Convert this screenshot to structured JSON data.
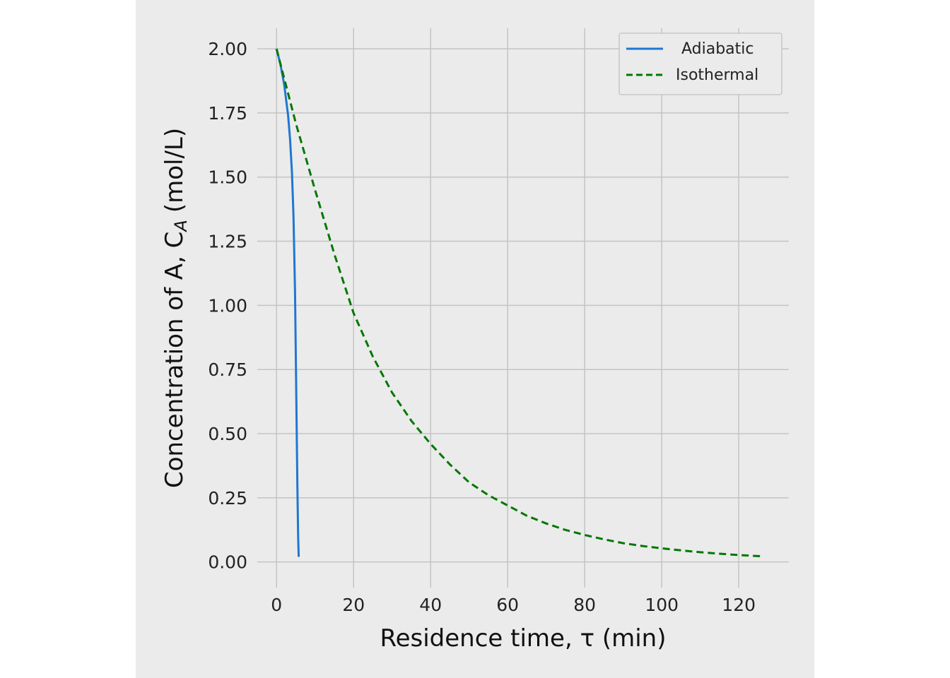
{
  "chart_data": {
    "type": "line",
    "xlabel": "Residence time, τ  (min)",
    "ylabel": "Concentration of A,  C",
    "ylabel_subscript": "A",
    "ylabel_unit": "(mol/L)",
    "xlim": [
      -5,
      133
    ],
    "ylim": [
      -0.1,
      2.08
    ],
    "xticks": [
      0,
      20,
      40,
      60,
      80,
      100,
      120
    ],
    "yticks": [
      "0.00",
      "0.25",
      "0.50",
      "0.75",
      "1.00",
      "1.25",
      "1.50",
      "1.75",
      "2.00"
    ],
    "grid": true,
    "legend_position": "top-right",
    "series": [
      {
        "name": "Adiabatic",
        "color": "#1f77d0",
        "style": "solid",
        "x": [
          0,
          1,
          2,
          3,
          3.5,
          4,
          4.4,
          4.8,
          5.0,
          5.2,
          5.4,
          5.6,
          5.75
        ],
        "y": [
          2.0,
          1.94,
          1.86,
          1.74,
          1.65,
          1.52,
          1.35,
          1.05,
          0.8,
          0.55,
          0.3,
          0.1,
          0.02
        ]
      },
      {
        "name": "Isothermal",
        "color": "#007700",
        "style": "dashed",
        "x": [
          0,
          5,
          10,
          15,
          20,
          25,
          30,
          35,
          40,
          45,
          50,
          55,
          60,
          65,
          70,
          75,
          80,
          85,
          90,
          95,
          100,
          105,
          110,
          115,
          120,
          126
        ],
        "y": [
          2.0,
          1.71,
          1.45,
          1.2,
          0.97,
          0.8,
          0.66,
          0.55,
          0.46,
          0.38,
          0.31,
          0.26,
          0.22,
          0.18,
          0.15,
          0.125,
          0.105,
          0.088,
          0.073,
          0.062,
          0.053,
          0.045,
          0.038,
          0.032,
          0.027,
          0.022
        ]
      }
    ]
  }
}
